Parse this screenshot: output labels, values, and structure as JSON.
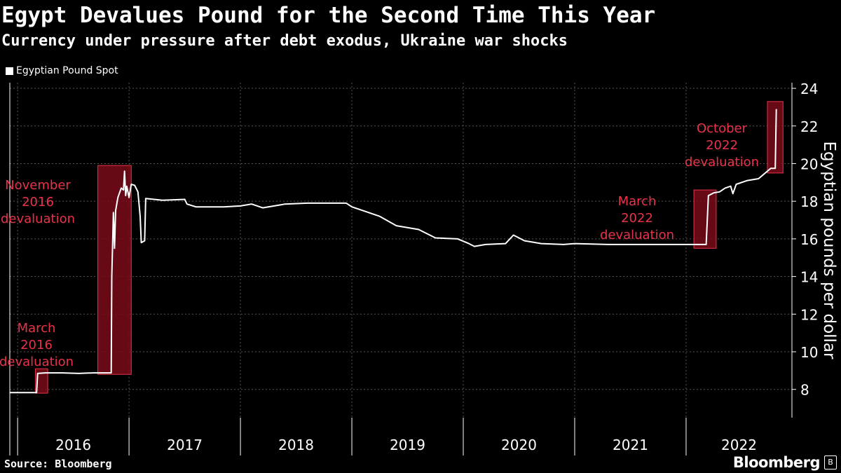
{
  "header": {
    "title": "Egypt Devalues Pound for the Second Time This Year",
    "subtitle": "Currency under pressure after debt exodus, Ukraine war shocks"
  },
  "footer": {
    "source": "Source: Bloomberg",
    "brand": "Bloomberg",
    "brand_icon": "B"
  },
  "colors": {
    "background": "#000000",
    "series": "#ffffff",
    "annotation_text": "#e8334a",
    "annotation_fill": "#7a0c1a",
    "annotation_stroke": "#e8334a",
    "grid": "#555555"
  },
  "chart_data": {
    "type": "line",
    "title": "Egypt Devalues Pound for the Second Time This Year",
    "subtitle": "Currency under pressure after debt exodus, Ukraine war shocks",
    "ylabel": "Egyptian pounds per dollar",
    "ylim": [
      6.5,
      24.3
    ],
    "yticks": [
      8,
      10,
      12,
      14,
      16,
      18,
      20,
      22,
      24
    ],
    "xlim": [
      2015.93,
      2022.95
    ],
    "xticks": [
      "2016",
      "2017",
      "2018",
      "2019",
      "2020",
      "2021",
      "2022"
    ],
    "grid": true,
    "legend_position": "top-left",
    "y_axis_side": "right",
    "series": [
      {
        "name": "Egyptian Pound Spot",
        "points": [
          [
            2015.93,
            7.83
          ],
          [
            2016.08,
            7.83
          ],
          [
            2016.17,
            7.83
          ],
          [
            2016.18,
            8.85
          ],
          [
            2016.25,
            8.88
          ],
          [
            2016.4,
            8.88
          ],
          [
            2016.55,
            8.85
          ],
          [
            2016.68,
            8.88
          ],
          [
            2016.84,
            8.88
          ],
          [
            2016.845,
            14.0
          ],
          [
            2016.86,
            17.4
          ],
          [
            2016.87,
            15.5
          ],
          [
            2016.88,
            17.5
          ],
          [
            2016.9,
            18.2
          ],
          [
            2016.93,
            18.7
          ],
          [
            2016.95,
            18.6
          ],
          [
            2016.96,
            19.6
          ],
          [
            2016.97,
            18.3
          ],
          [
            2016.98,
            18.8
          ],
          [
            2017.0,
            18.2
          ],
          [
            2017.02,
            18.9
          ],
          [
            2017.05,
            18.85
          ],
          [
            2017.08,
            18.5
          ],
          [
            2017.1,
            17.2
          ],
          [
            2017.11,
            15.8
          ],
          [
            2017.14,
            15.9
          ],
          [
            2017.15,
            18.15
          ],
          [
            2017.3,
            18.05
          ],
          [
            2017.5,
            18.1
          ],
          [
            2017.52,
            17.85
          ],
          [
            2017.6,
            17.7
          ],
          [
            2017.85,
            17.7
          ],
          [
            2018.0,
            17.75
          ],
          [
            2018.1,
            17.85
          ],
          [
            2018.2,
            17.65
          ],
          [
            2018.35,
            17.8
          ],
          [
            2018.4,
            17.85
          ],
          [
            2018.6,
            17.9
          ],
          [
            2018.8,
            17.9
          ],
          [
            2018.95,
            17.9
          ],
          [
            2019.0,
            17.7
          ],
          [
            2019.1,
            17.5
          ],
          [
            2019.25,
            17.2
          ],
          [
            2019.4,
            16.7
          ],
          [
            2019.6,
            16.5
          ],
          [
            2019.75,
            16.05
          ],
          [
            2019.95,
            16.0
          ],
          [
            2020.05,
            15.75
          ],
          [
            2020.1,
            15.6
          ],
          [
            2020.2,
            15.7
          ],
          [
            2020.38,
            15.75
          ],
          [
            2020.45,
            16.2
          ],
          [
            2020.55,
            15.9
          ],
          [
            2020.7,
            15.75
          ],
          [
            2020.9,
            15.7
          ],
          [
            2021.0,
            15.75
          ],
          [
            2021.3,
            15.7
          ],
          [
            2021.7,
            15.7
          ],
          [
            2022.0,
            15.7
          ],
          [
            2022.18,
            15.7
          ],
          [
            2022.2,
            18.3
          ],
          [
            2022.25,
            18.45
          ],
          [
            2022.3,
            18.5
          ],
          [
            2022.35,
            18.7
          ],
          [
            2022.4,
            18.8
          ],
          [
            2022.42,
            18.4
          ],
          [
            2022.45,
            18.9
          ],
          [
            2022.55,
            19.1
          ],
          [
            2022.65,
            19.2
          ],
          [
            2022.72,
            19.55
          ],
          [
            2022.76,
            19.75
          ],
          [
            2022.8,
            19.75
          ],
          [
            2022.81,
            22.9
          ]
        ]
      }
    ],
    "annotations": [
      {
        "label": [
          "March",
          "2016",
          "devaluation"
        ],
        "x0": 2016.16,
        "x1": 2016.27,
        "y0": 7.8,
        "y1": 9.1
      },
      {
        "label": [
          "November",
          "2016",
          "devaluation"
        ],
        "x0": 2016.72,
        "x1": 2017.02,
        "y0": 8.8,
        "y1": 19.9
      },
      {
        "label": [
          "March",
          "2022",
          "devaluation"
        ],
        "x0": 2022.07,
        "x1": 2022.27,
        "y0": 15.5,
        "y1": 18.6
      },
      {
        "label": [
          "October",
          "2022",
          "devaluation"
        ],
        "x0": 2022.73,
        "x1": 2022.87,
        "y0": 19.5,
        "y1": 23.3
      }
    ]
  }
}
